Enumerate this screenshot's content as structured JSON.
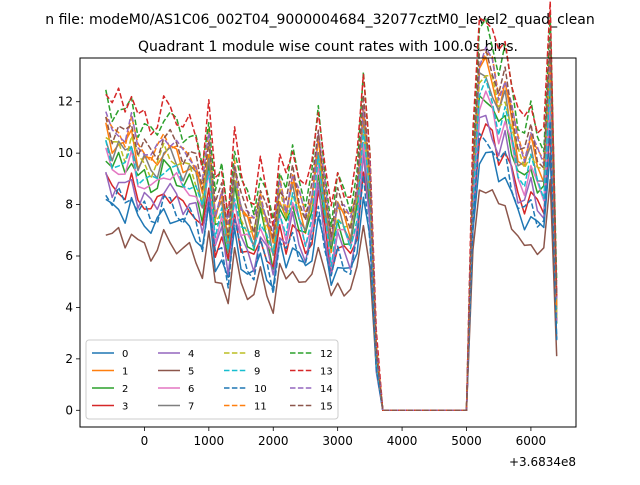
{
  "figure_title": "n file: modeM0/AS1C06_002T04_9000004684_32077cztM0_level2_quad_clean",
  "chart_data": {
    "type": "line",
    "title": "Quadrant 1 module wise count rates with 100.0s bins.",
    "xlabel": "",
    "ylabel": "",
    "x_offset_label": "+3.6834e8",
    "xlim": [
      -1000,
      6700
    ],
    "ylim": [
      -0.65,
      13.7
    ],
    "xticks": [
      0,
      1000,
      2000,
      3000,
      4000,
      5000,
      6000
    ],
    "xtick_labels": [
      "0",
      "1000",
      "2000",
      "3000",
      "4000",
      "5000",
      "6000"
    ],
    "yticks": [
      0,
      2,
      4,
      6,
      8,
      10,
      12
    ],
    "ytick_labels": [
      "0",
      "2",
      "4",
      "6",
      "8",
      "10",
      "12"
    ],
    "legend_position": "lower-left",
    "legend_columns": 4,
    "x": [
      -600,
      -500,
      -400,
      -300,
      -200,
      -100,
      0,
      100,
      200,
      300,
      400,
      500,
      600,
      700,
      800,
      900,
      1000,
      1100,
      1200,
      1300,
      1400,
      1500,
      1600,
      1700,
      1800,
      1900,
      2000,
      2100,
      2200,
      2300,
      2400,
      2500,
      2600,
      2700,
      2800,
      2900,
      3000,
      3100,
      3200,
      3300,
      3400,
      3500,
      3600,
      3700,
      3800,
      3900,
      4000,
      4100,
      4200,
      4300,
      4400,
      4500,
      4600,
      4700,
      4800,
      4900,
      5000,
      5100,
      5200,
      5300,
      5400,
      5500,
      5600,
      5700,
      5800,
      5900,
      6000,
      6100,
      6200,
      6300,
      6400
    ],
    "base_profile": [
      8.2,
      7.7,
      7.9,
      7.6,
      8.1,
      7.3,
      7.4,
      7.1,
      7.2,
      7.7,
      7.6,
      7.4,
      7.1,
      7.2,
      6.9,
      6.2,
      7.7,
      5.6,
      6.1,
      4.9,
      6.9,
      5.8,
      5.4,
      5.1,
      6.1,
      5.4,
      4.7,
      6.3,
      5.7,
      6.6,
      5.9,
      5.4,
      6.1,
      7.7,
      6.2,
      4.8,
      5.9,
      5.5,
      5.2,
      6.2,
      8.6,
      6.6,
      1.6,
      0,
      0,
      0,
      0,
      0,
      0,
      0,
      0,
      0,
      0,
      0,
      0,
      0,
      0,
      6.8,
      9.9,
      10.1,
      9.7,
      8.9,
      9.4,
      8.4,
      7.5,
      7.2,
      7.8,
      7.1,
      6.9,
      10.3,
      2.9
    ],
    "series": [
      {
        "name": "0",
        "color": "#1f77b4",
        "dash": "solid",
        "scale": 1.0,
        "offset": 0.0
      },
      {
        "name": "1",
        "color": "#ff7f0e",
        "dash": "solid",
        "scale": 1.32,
        "offset": 0.1
      },
      {
        "name": "2",
        "color": "#2ca02c",
        "dash": "solid",
        "scale": 1.2,
        "offset": 0.2
      },
      {
        "name": "3",
        "color": "#d62728",
        "dash": "solid",
        "scale": 1.05,
        "offset": 0.4
      },
      {
        "name": "4",
        "color": "#9467bd",
        "dash": "solid",
        "scale": 1.12,
        "offset": 0.0
      },
      {
        "name": "5",
        "color": "#8c564b",
        "dash": "solid",
        "scale": 0.88,
        "offset": -0.1
      },
      {
        "name": "6",
        "color": "#e377c2",
        "dash": "solid",
        "scale": 1.18,
        "offset": 0.2
      },
      {
        "name": "7",
        "color": "#7f7f7f",
        "dash": "solid",
        "scale": 1.26,
        "offset": 0.3
      },
      {
        "name": "8",
        "color": "#bcbd22",
        "dash": "dashed",
        "scale": 1.3,
        "offset": 0.1
      },
      {
        "name": "9",
        "color": "#17becf",
        "dash": "dashed",
        "scale": 1.24,
        "offset": 0.0
      },
      {
        "name": "10",
        "color": "#1f77b4",
        "dash": "dashed",
        "scale": 1.08,
        "offset": -0.2
      },
      {
        "name": "11",
        "color": "#ff7f0e",
        "dash": "dashed",
        "scale": 1.36,
        "offset": 0.2
      },
      {
        "name": "12",
        "color": "#2ca02c",
        "dash": "dashed",
        "scale": 1.42,
        "offset": 0.6
      },
      {
        "name": "13",
        "color": "#d62728",
        "dash": "dashed",
        "scale": 1.48,
        "offset": 0.5
      },
      {
        "name": "14",
        "color": "#9467bd",
        "dash": "dashed",
        "scale": 1.35,
        "offset": 0.3
      },
      {
        "name": "15",
        "color": "#8c564b",
        "dash": "dashed",
        "scale": 1.34,
        "offset": 0.4
      }
    ]
  }
}
